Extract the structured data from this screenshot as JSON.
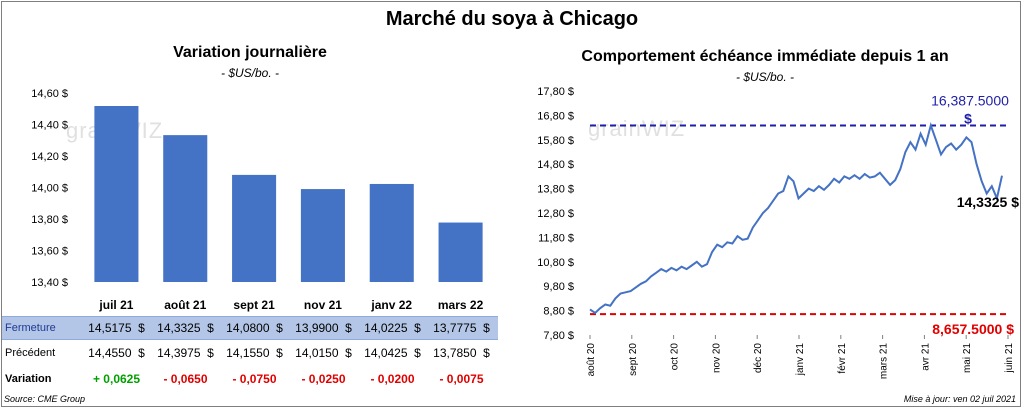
{
  "title": "Marché du soya à Chicago",
  "left": {
    "subtitle": "Variation journalière",
    "unit": "- $US/bo. -",
    "watermark": "grainWIZ"
  },
  "right": {
    "subtitle": "Comportement échéance immédiate depuis 1 an",
    "unit": "- $US/bo. -",
    "watermark": "grainWIZ"
  },
  "table": {
    "fermeture_label": "Fermeture",
    "precedent_label": "Précédent",
    "variation_label": "Variation",
    "fermeture": [
      "14,5175  $",
      "14,3325  $",
      "14,0800  $",
      "13,9900  $",
      "14,0225  $",
      "13,7775  $"
    ],
    "precedent": [
      "14,4550  $",
      "14,3975  $",
      "14,1550  $",
      "14,0150  $",
      "14,0425  $",
      "13,7850  $"
    ],
    "variation": [
      "+ 0,0625",
      "- 0,0650",
      "- 0,0750",
      "- 0,0250",
      "- 0,0200",
      "- 0,0075"
    ]
  },
  "footer": {
    "source": "Source: CME Group",
    "updated": "Mise à jour: ven 02 juil 2021"
  },
  "colors": {
    "bar": "#4472c4",
    "line": "#4472c4",
    "max_line": "#1f1fa8",
    "min_line": "#e00000",
    "positive": "#00a000",
    "negative": "#e00000"
  },
  "chart_data": [
    {
      "type": "bar",
      "categories": [
        "juil 21",
        "août 21",
        "sept 21",
        "nov 21",
        "janv 22",
        "mars 22"
      ],
      "values": [
        14.5175,
        14.3325,
        14.08,
        13.99,
        14.0225,
        13.7775
      ],
      "ylim": [
        13.4,
        14.6
      ],
      "yticks": [
        "13,40 $",
        "13,60 $",
        "13,80 $",
        "14,00 $",
        "14,20 $",
        "14,40 $",
        "14,60 $"
      ],
      "ytick_values": [
        13.4,
        13.6,
        13.8,
        14.0,
        14.2,
        14.4,
        14.6
      ],
      "grid": false
    },
    {
      "type": "line",
      "ylim": [
        7.8,
        17.8
      ],
      "yticks": [
        "7,80 $",
        "8,80 $",
        "9,80 $",
        "10,80 $",
        "11,80 $",
        "12,80 $",
        "13,80 $",
        "14,80 $",
        "15,80 $",
        "16,80 $",
        "17,80 $"
      ],
      "ytick_values": [
        7.8,
        8.8,
        9.8,
        10.8,
        11.8,
        12.8,
        13.8,
        14.8,
        15.8,
        16.8,
        17.8
      ],
      "xticks": [
        "août 20",
        "sept 20",
        "oct 20",
        "nov 20",
        "déc 20",
        "janv 21",
        "févr 21",
        "mars 21",
        "avr 21",
        "mai 21",
        "juin 21"
      ],
      "series": [
        {
          "values": [
            8.85,
            8.7,
            8.9,
            9.05,
            9.0,
            9.3,
            9.5,
            9.55,
            9.6,
            9.75,
            9.9,
            10.0,
            10.2,
            10.35,
            10.5,
            10.4,
            10.55,
            10.45,
            10.6,
            10.5,
            10.65,
            10.8,
            10.6,
            10.7,
            11.2,
            11.5,
            11.4,
            11.6,
            11.55,
            11.85,
            11.7,
            11.75,
            12.2,
            12.5,
            12.8,
            13.0,
            13.3,
            13.6,
            13.7,
            14.3,
            14.1,
            13.4,
            13.6,
            13.8,
            13.7,
            13.9,
            13.75,
            13.95,
            14.2,
            14.05,
            14.3,
            14.2,
            14.35,
            14.2,
            14.4,
            14.25,
            14.3,
            14.45,
            14.2,
            13.95,
            14.15,
            14.6,
            15.3,
            15.7,
            15.4,
            16.05,
            15.6,
            16.39,
            15.8,
            15.2,
            15.5,
            15.65,
            15.4,
            15.6,
            15.9,
            15.7,
            14.8,
            14.1,
            13.6,
            13.9,
            13.4,
            14.33
          ]
        }
      ],
      "max_value": 16.3875,
      "min_value": 8.6575,
      "max_label": "16,387.5000 $",
      "min_label": "8,657.5000 $",
      "last_label": "14,3325 $",
      "grid": false
    }
  ]
}
